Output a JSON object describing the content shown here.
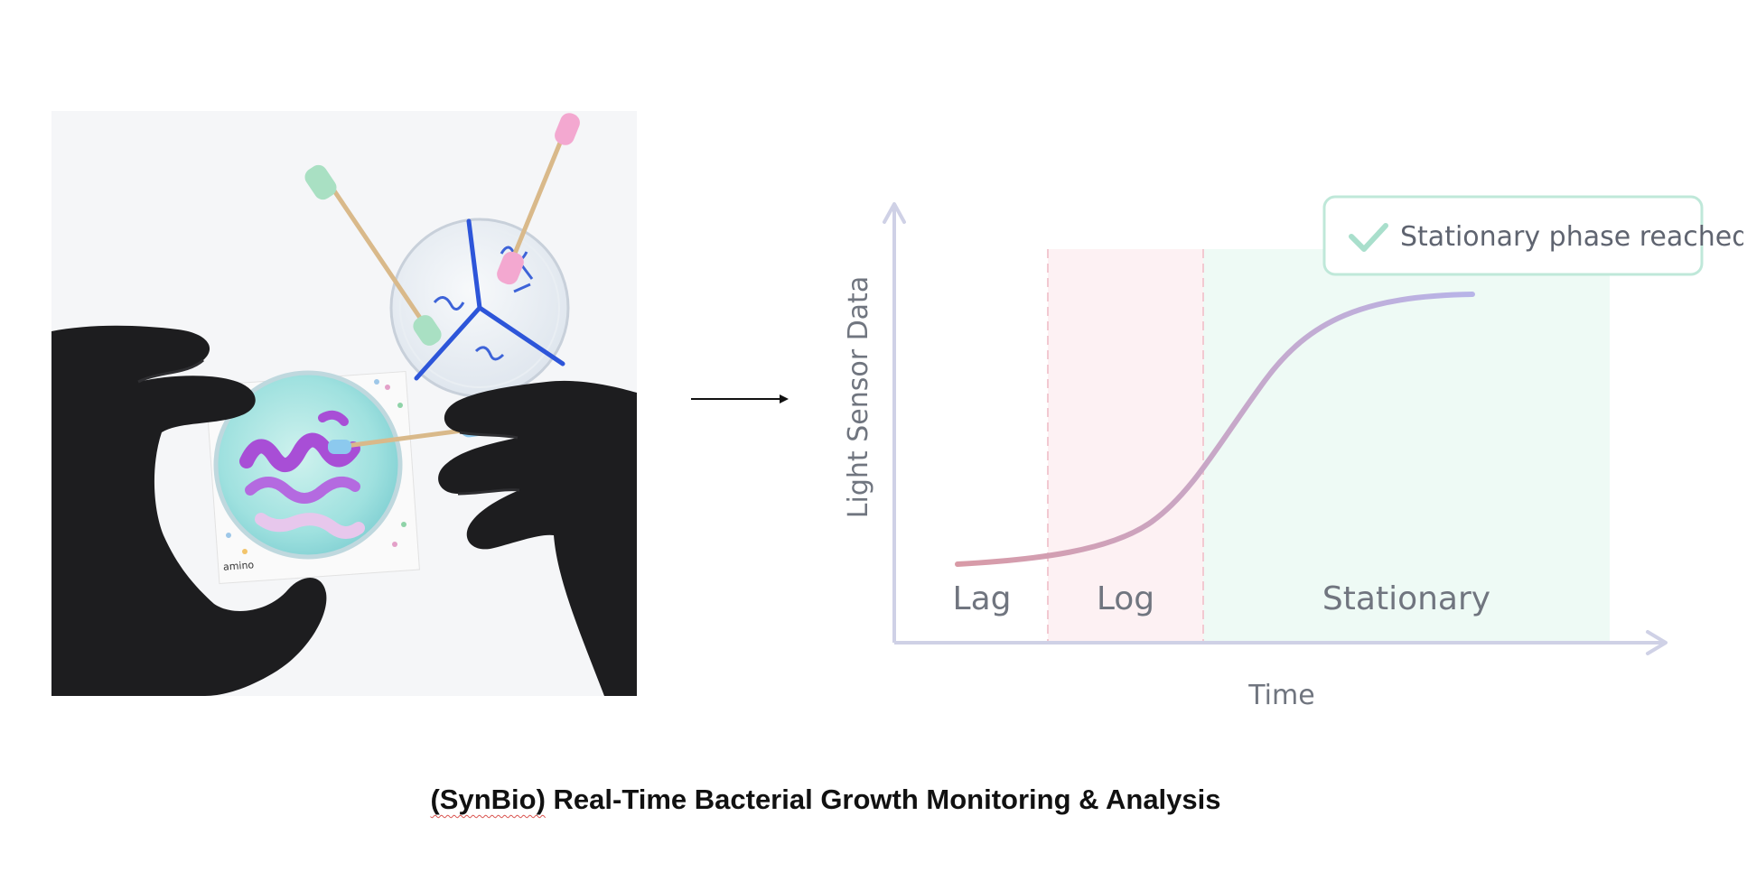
{
  "figure": {
    "caption_prefix": "(SynBio)",
    "caption_rest": " Real-Time Bacterial Growth Monitoring & Analysis"
  },
  "photo": {
    "packet_label": "amino"
  },
  "chart_data": {
    "type": "line",
    "xlabel": "Time",
    "ylabel": "Light Sensor Data",
    "phases": [
      {
        "label": "Lag",
        "color": "#ffffff"
      },
      {
        "label": "Log",
        "color": "#fdf1f3"
      },
      {
        "label": "Stationary",
        "color": "#eefaf5"
      }
    ],
    "badge": {
      "text": "Stationary phase reached",
      "color": "#bfe8d9"
    },
    "curve_colors": [
      "#d89aa6",
      "#b8b4e8"
    ],
    "axis_color": "#cfd1e6"
  }
}
